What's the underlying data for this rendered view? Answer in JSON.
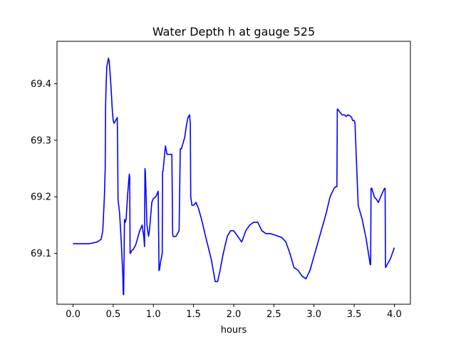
{
  "chart_data": {
    "type": "line",
    "title": "Water Depth h at gauge 525",
    "xlabel": "hours",
    "ylabel": "",
    "xlim": [
      -0.2,
      4.2
    ],
    "ylim": [
      69.01,
      69.475
    ],
    "xticks": [
      0.0,
      0.5,
      1.0,
      1.5,
      2.0,
      2.5,
      3.0,
      3.5,
      4.0
    ],
    "xtick_labels": [
      "0.0",
      "0.5",
      "1.0",
      "1.5",
      "2.0",
      "2.5",
      "3.0",
      "3.5",
      "4.0"
    ],
    "yticks": [
      69.1,
      69.2,
      69.3,
      69.4
    ],
    "ytick_labels": [
      "69.1",
      "69.2",
      "69.3",
      "69.4"
    ],
    "grid": false,
    "series": [
      {
        "color": "#0000ff",
        "x": [
          0.0,
          0.2,
          0.3,
          0.35,
          0.37,
          0.39,
          0.4,
          0.405,
          0.41,
          0.42,
          0.44,
          0.45,
          0.47,
          0.49,
          0.5,
          0.51,
          0.53,
          0.55,
          0.555,
          0.56,
          0.58,
          0.6,
          0.62,
          0.625,
          0.63,
          0.64,
          0.65,
          0.66,
          0.68,
          0.7,
          0.705,
          0.71,
          0.715,
          0.73,
          0.75,
          0.78,
          0.8,
          0.83,
          0.86,
          0.88,
          0.89,
          0.895,
          0.9,
          0.91,
          0.92,
          0.93,
          0.94,
          0.95,
          0.96,
          0.98,
          1.0,
          1.03,
          1.06,
          1.07,
          1.075,
          1.08,
          1.09,
          1.11,
          1.115,
          1.12,
          1.13,
          1.15,
          1.17,
          1.19,
          1.22,
          1.23,
          1.24,
          1.245,
          1.25,
          1.28,
          1.32,
          1.335,
          1.34,
          1.35,
          1.37,
          1.39,
          1.41,
          1.43,
          1.45,
          1.46,
          1.465,
          1.47,
          1.48,
          1.5,
          1.53,
          1.56,
          1.6,
          1.65,
          1.72,
          1.77,
          1.8,
          1.83,
          1.87,
          1.92,
          1.96,
          2.0,
          2.05,
          2.1,
          2.15,
          2.2,
          2.25,
          2.3,
          2.35,
          2.4,
          2.45,
          2.5,
          2.6,
          2.65,
          2.7,
          2.75,
          2.8,
          2.85,
          2.9,
          2.95,
          3.0,
          3.05,
          3.1,
          3.15,
          3.2,
          3.25,
          3.27,
          3.285,
          3.29,
          3.295,
          3.32,
          3.35,
          3.38,
          3.4,
          3.42,
          3.45,
          3.47,
          3.48,
          3.49,
          3.5,
          3.51,
          3.55,
          3.6,
          3.65,
          3.7,
          3.705,
          3.71,
          3.72,
          3.75,
          3.78,
          3.8,
          3.83,
          3.86,
          3.88,
          3.885,
          3.89,
          3.95,
          4.0
        ],
        "y": [
          69.117,
          69.117,
          69.12,
          69.125,
          69.14,
          69.2,
          69.25,
          69.36,
          69.39,
          69.43,
          69.445,
          69.44,
          69.4,
          69.35,
          69.335,
          69.33,
          69.335,
          69.34,
          69.29,
          69.195,
          69.17,
          69.12,
          69.06,
          69.028,
          69.027,
          69.16,
          69.155,
          69.16,
          69.205,
          69.24,
          69.235,
          69.1,
          69.1,
          69.105,
          69.107,
          69.115,
          69.125,
          69.14,
          69.15,
          69.13,
          69.112,
          69.25,
          69.245,
          69.2,
          69.15,
          69.14,
          69.13,
          69.14,
          69.155,
          69.19,
          69.197,
          69.2,
          69.21,
          69.07,
          69.07,
          69.075,
          69.085,
          69.1,
          69.245,
          69.245,
          69.26,
          69.29,
          69.275,
          69.275,
          69.275,
          69.275,
          69.135,
          69.13,
          69.13,
          69.13,
          69.14,
          69.285,
          69.285,
          69.285,
          69.295,
          69.305,
          69.325,
          69.34,
          69.345,
          69.33,
          69.2,
          69.195,
          69.185,
          69.185,
          69.19,
          69.18,
          69.16,
          69.13,
          69.09,
          69.05,
          69.05,
          69.07,
          69.1,
          69.13,
          69.14,
          69.14,
          69.13,
          69.12,
          69.14,
          69.15,
          69.155,
          69.155,
          69.14,
          69.135,
          69.135,
          69.133,
          69.128,
          69.12,
          69.1,
          69.075,
          69.07,
          69.06,
          69.055,
          69.07,
          69.095,
          69.12,
          69.145,
          69.17,
          69.2,
          69.215,
          69.218,
          69.218,
          69.355,
          69.355,
          69.35,
          69.345,
          69.345,
          69.342,
          69.345,
          69.343,
          69.34,
          69.335,
          69.335,
          69.335,
          69.33,
          69.185,
          69.16,
          69.125,
          69.08,
          69.08,
          69.215,
          69.215,
          69.2,
          69.195,
          69.19,
          69.2,
          69.21,
          69.215,
          69.215,
          69.075,
          69.09,
          69.11
        ]
      }
    ]
  }
}
